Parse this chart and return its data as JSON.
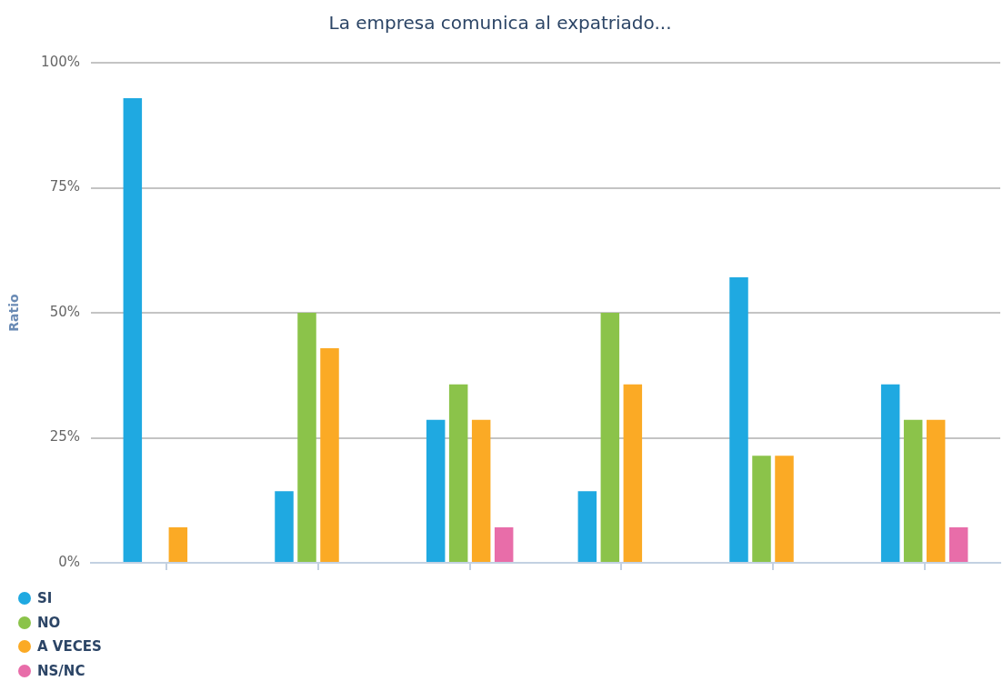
{
  "chart_data": {
    "type": "bar",
    "title": "La empresa comunica al expatriado...",
    "ylabel": "Ratio",
    "categories": [
      null,
      null,
      null,
      null,
      null,
      null
    ],
    "series": [
      {
        "name": "SI",
        "color": "#1fa9e1",
        "values": [
          92.9,
          14.3,
          28.6,
          14.3,
          57.1,
          35.7
        ]
      },
      {
        "name": "NO",
        "color": "#8bc34a",
        "values": [
          0,
          50,
          35.7,
          50,
          21.4,
          28.6
        ]
      },
      {
        "name": "A VECES",
        "color": "#fbaa25",
        "values": [
          7.1,
          42.9,
          28.6,
          35.7,
          21.4,
          28.6
        ]
      },
      {
        "name": "NS/NC",
        "color": "#e86da9",
        "values": [
          0,
          0,
          7.1,
          0,
          0,
          7.1
        ]
      }
    ],
    "ylim": [
      0,
      100
    ],
    "yticks": [
      {
        "value": 0,
        "label": "0%"
      },
      {
        "value": 25,
        "label": "25%"
      },
      {
        "value": 50,
        "label": "50%"
      },
      {
        "value": 75,
        "label": "75%"
      },
      {
        "value": 100,
        "label": "100%"
      }
    ],
    "grid": "y",
    "legend": "bottom left",
    "tick_labels": "y"
  }
}
